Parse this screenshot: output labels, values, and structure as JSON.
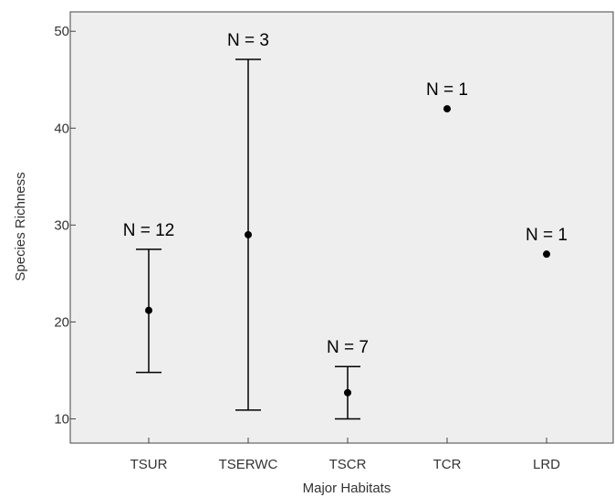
{
  "chart_data": {
    "type": "errorbar",
    "xlabel": "Major Habitats",
    "ylabel": "Species Richness",
    "ylim": [
      7.5,
      52
    ],
    "yticks": [
      10,
      20,
      30,
      40,
      50
    ],
    "grid": false,
    "categories": [
      "TSUR",
      "TSERWC",
      "TSCR",
      "TCR",
      "LRD"
    ],
    "points": [
      {
        "category": "TSUR",
        "mean": 21.2,
        "lower": 14.8,
        "upper": 27.5,
        "n_label": "N = 12"
      },
      {
        "category": "TSERWC",
        "mean": 29.0,
        "lower": 10.9,
        "upper": 47.1,
        "n_label": "N = 3"
      },
      {
        "category": "TSCR",
        "mean": 12.7,
        "lower": 10.0,
        "upper": 15.4,
        "n_label": "N = 7"
      },
      {
        "category": "TCR",
        "mean": 42.0,
        "lower": null,
        "upper": null,
        "n_label": "N = 1"
      },
      {
        "category": "LRD",
        "mean": 27.0,
        "lower": null,
        "upper": null,
        "n_label": "N = 1"
      }
    ],
    "colors": {
      "plot_background": "#eeeeee",
      "marks": "#000000"
    }
  }
}
